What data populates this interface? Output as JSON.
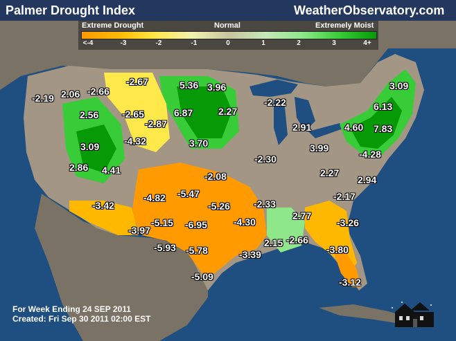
{
  "header": {
    "title": "Palmer Drought Index",
    "site": "WeatherObservatory.com"
  },
  "legend": {
    "label_left": "Extreme Drought",
    "label_mid": "Normal",
    "label_right": "Extremely Moist",
    "ticks": [
      "<-4",
      "-3",
      "-2",
      "-1",
      "0",
      "1",
      "2",
      "3",
      "4+"
    ],
    "colors": [
      "#ff9a00",
      "#ffb800",
      "#ffe84a",
      "#f2f0b0",
      "#c9c4a0",
      "#c7e8b8",
      "#8ee88a",
      "#38cc38",
      "#069b06"
    ]
  },
  "colors": {
    "ocean": "#1f4f80",
    "land_foreign": "#7a7264",
    "land_us": "#a39684",
    "border": "#303030"
  },
  "chart_data": {
    "type": "map",
    "values": [
      {
        "label": "-2.19"
      },
      {
        "label": "2.06"
      },
      {
        "label": "-2.66"
      },
      {
        "label": "-2.67"
      },
      {
        "label": "5.36"
      },
      {
        "label": "3.96"
      },
      {
        "label": "3.09"
      },
      {
        "label": "2.56"
      },
      {
        "label": "-2.65"
      },
      {
        "label": "6.87"
      },
      {
        "label": "2.27"
      },
      {
        "label": "-2.22"
      },
      {
        "label": "6.13"
      },
      {
        "label": "-2.87"
      },
      {
        "label": "2.91"
      },
      {
        "label": "4.60"
      },
      {
        "label": "7.83"
      },
      {
        "label": "3.09"
      },
      {
        "label": "-4.32"
      },
      {
        "label": "3.70"
      },
      {
        "label": "3.99"
      },
      {
        "label": "-4.28"
      },
      {
        "label": "2.86"
      },
      {
        "label": "4.41"
      },
      {
        "label": "-2.08"
      },
      {
        "label": "-2.30"
      },
      {
        "label": "2.27"
      },
      {
        "label": "2.94"
      },
      {
        "label": "-4.82"
      },
      {
        "label": "-5.47"
      },
      {
        "label": "-3.42"
      },
      {
        "label": "-5.26"
      },
      {
        "label": "-2.33"
      },
      {
        "label": "-2.17"
      },
      {
        "label": "-3.97"
      },
      {
        "label": "-5.15"
      },
      {
        "label": "-6.95"
      },
      {
        "label": "-4.30"
      },
      {
        "label": "2.77"
      },
      {
        "label": "-3.26"
      },
      {
        "label": "2.15"
      },
      {
        "label": "-2.66"
      },
      {
        "label": "-5.93"
      },
      {
        "label": "-5.78"
      },
      {
        "label": "-3.39"
      },
      {
        "label": "-3.80"
      },
      {
        "label": "-5.09"
      },
      {
        "label": "-3.12"
      }
    ]
  },
  "footer": {
    "week": "For Week Ending 24 SEP 2011",
    "created": "Created: Fri Sep 30 2011 02:00 EST"
  }
}
